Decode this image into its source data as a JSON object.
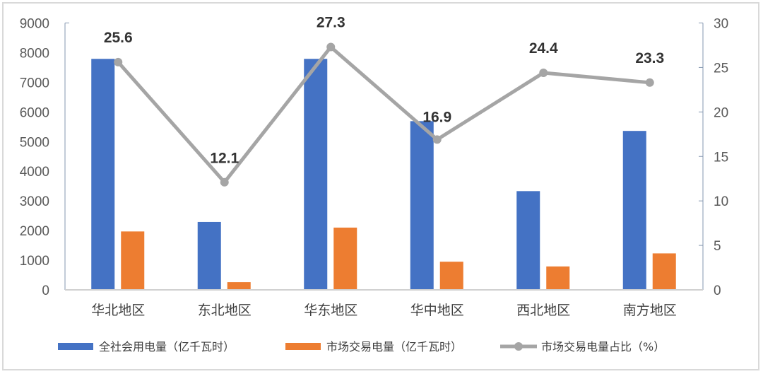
{
  "chart_data": {
    "type": "bar",
    "categories": [
      "华北地区",
      "东北地区",
      "华东地区",
      "华中地区",
      "西北地区",
      "南方地区"
    ],
    "series": [
      {
        "name": "全社会用电量（亿千瓦时）",
        "type": "bar",
        "axis": "left",
        "color": "#4472C4",
        "values": [
          7790,
          2290,
          7790,
          5690,
          3330,
          5360
        ]
      },
      {
        "name": "市场交易电量（亿千瓦时）",
        "type": "bar",
        "axis": "left",
        "color": "#ED7D31",
        "values": [
          1970,
          260,
          2100,
          950,
          790,
          1230
        ]
      },
      {
        "name": "市场交易电量占比（%）",
        "type": "line",
        "axis": "right",
        "color": "#A5A5A5",
        "values": [
          25.6,
          12.1,
          27.3,
          16.9,
          24.4,
          23.3
        ],
        "data_labels": [
          "25.6",
          "12.1",
          "27.3",
          "16.9",
          "24.4",
          "23.3"
        ]
      }
    ],
    "ylim": [
      0,
      9000
    ],
    "y_ticks": [
      "0",
      "1000",
      "2000",
      "3000",
      "4000",
      "5000",
      "6000",
      "7000",
      "8000",
      "9000"
    ],
    "y2lim": [
      0,
      30
    ],
    "y2_ticks": [
      "0",
      "5",
      "10",
      "15",
      "20",
      "25",
      "30"
    ],
    "grid": false,
    "legend": "bottom"
  }
}
